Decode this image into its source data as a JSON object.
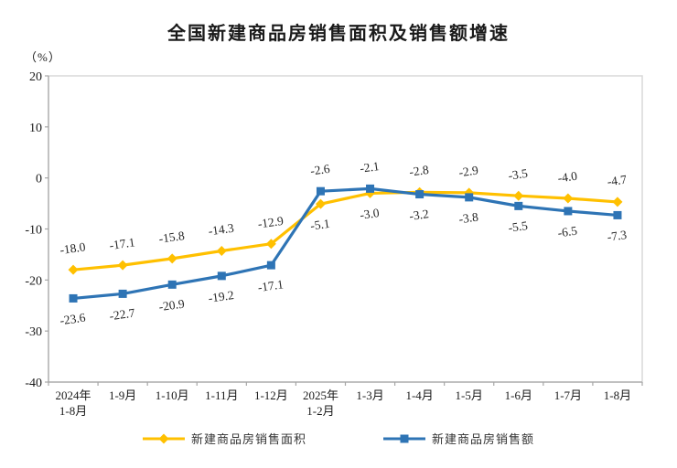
{
  "page": {
    "background": "#ffffff"
  },
  "chart_data": {
    "type": "line",
    "title": "全国新建商品房销售面积及销售额增速",
    "unit_label": "（%）",
    "categories": [
      "2024年\n1-8月",
      "1-9月",
      "1-10月",
      "1-11月",
      "1-12月",
      "2025年\n1-2月",
      "1-3月",
      "1-4月",
      "1-5月",
      "1-6月",
      "1-7月",
      "1-8月"
    ],
    "series": [
      {
        "name": "新建商品房销售面积",
        "marker": "diamond",
        "color": "#FFC000",
        "values": [
          -18.0,
          -17.1,
          -15.8,
          -14.3,
          -12.9,
          -5.1,
          -3.0,
          -2.8,
          -2.9,
          -3.5,
          -4.0,
          -4.7
        ]
      },
      {
        "name": "新建商品房销售额",
        "marker": "square",
        "color": "#2E74B5",
        "values": [
          -23.6,
          -22.7,
          -20.9,
          -19.2,
          -17.1,
          -2.6,
          -2.1,
          -3.2,
          -3.8,
          -5.5,
          -6.5,
          -7.3
        ]
      }
    ],
    "y_axis": {
      "min": -40,
      "max": 20,
      "step": 10,
      "ticks": [
        20,
        10,
        0,
        -10,
        -20,
        -30,
        -40
      ]
    },
    "xlabel": "",
    "ylabel": "（%）",
    "grid": false,
    "data_labels": true,
    "legend_position": "bottom",
    "colors": {
      "plot_border": "#d9d9d9",
      "axis_line": "#a6a6a6",
      "label_text": "#262626",
      "axis_text": "#1a1a1a"
    }
  }
}
